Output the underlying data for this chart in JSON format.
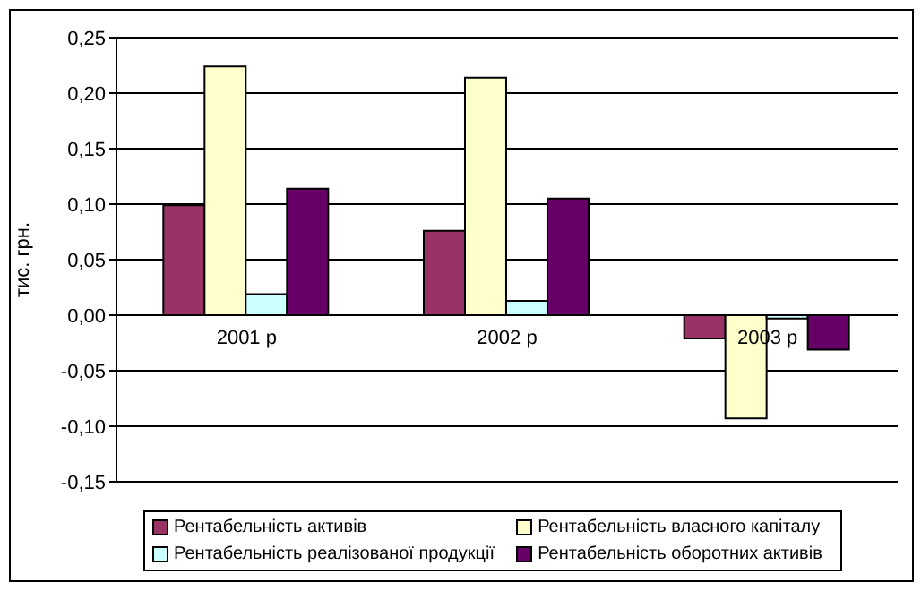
{
  "chart_data": {
    "type": "bar",
    "ylabel": "тис. грн.",
    "categories": [
      "2001 р",
      "2002 р",
      "2003 р"
    ],
    "series": [
      {
        "name": "Рентабельність активів",
        "color": "#993366",
        "values": [
          0.099,
          0.076,
          -0.021
        ]
      },
      {
        "name": "Рентабельність власного капіталу",
        "color": "#ffffcc",
        "values": [
          0.224,
          0.214,
          -0.093
        ]
      },
      {
        "name": "Рентабельність реалізованої продукції",
        "color": "#ccffff",
        "values": [
          0.019,
          0.013,
          -0.003
        ]
      },
      {
        "name": "Рентабельність оборотних активів",
        "color": "#660066",
        "values": [
          0.114,
          0.105,
          -0.031
        ]
      }
    ],
    "ylim": [
      -0.15,
      0.25
    ],
    "yticks": [
      {
        "value": -0.15,
        "label": "-0,15"
      },
      {
        "value": -0.1,
        "label": "-0,10"
      },
      {
        "value": -0.05,
        "label": "-0,05"
      },
      {
        "value": 0,
        "label": "0,00"
      },
      {
        "value": 0.05,
        "label": "0,05"
      },
      {
        "value": 0.1,
        "label": "0,10"
      },
      {
        "value": 0.15,
        "label": "0,15"
      },
      {
        "value": 0.2,
        "label": "0,20"
      },
      {
        "value": 0.25,
        "label": "0,25"
      }
    ],
    "grid": "y",
    "legend": "bottom"
  }
}
